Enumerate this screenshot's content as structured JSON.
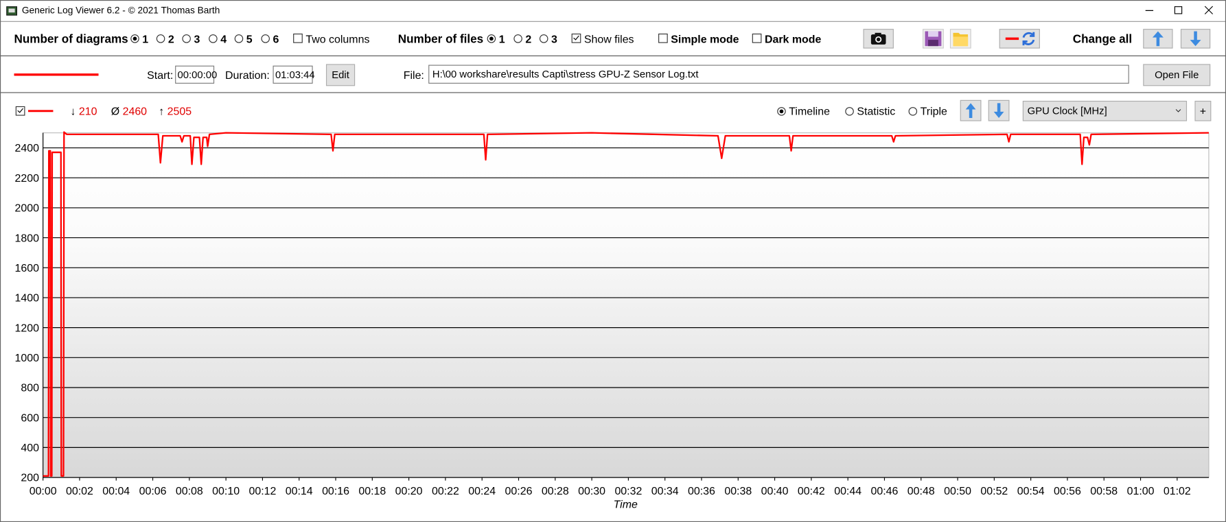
{
  "window": {
    "title": "Generic Log Viewer 6.2 - © 2021 Thomas Barth"
  },
  "toolbar": {
    "diagrams_label": "Number of diagrams",
    "diagram_options": [
      "1",
      "2",
      "3",
      "4",
      "5",
      "6"
    ],
    "two_columns": "Two columns",
    "files_label": "Number of files",
    "file_options": [
      "1",
      "2",
      "3"
    ],
    "show_files": "Show files",
    "simple_mode": "Simple mode",
    "dark_mode": "Dark mode",
    "change_all": "Change all"
  },
  "file_bar": {
    "start_label": "Start:",
    "start": "00:00:00",
    "duration_label": "Duration:",
    "duration": "01:03:44",
    "edit": "Edit",
    "file_label": "File:",
    "file": "H:\\00 workshare\\results Capti\\stress GPU-Z Sensor Log.txt",
    "open_file": "Open File"
  },
  "chart_panel": {
    "stats": [
      {
        "symbol": "↓",
        "value": 210
      },
      {
        "symbol": "Ø",
        "value": 2460
      },
      {
        "symbol": "↑",
        "value": 2505
      }
    ],
    "modes": [
      "Timeline",
      "Statistic",
      "Triple"
    ],
    "selector": "GPU Clock [MHz]",
    "add": "+"
  },
  "chart_data": {
    "type": "line",
    "x_label": "Time",
    "grid": true,
    "x": [
      0,
      0.3,
      0.32,
      0.4,
      0.42,
      0.48,
      0.5,
      0.98,
      1.0,
      1.12,
      1.15,
      1.3,
      6.3,
      6.42,
      6.55,
      7.5,
      7.6,
      7.7,
      8.05,
      8.14,
      8.25,
      8.55,
      8.65,
      8.75,
      8.95,
      9.0,
      9.1,
      10,
      15.75,
      15.85,
      15.95,
      24.1,
      24.2,
      24.3,
      30,
      36.9,
      37.1,
      37.3,
      40.8,
      40.9,
      41.0,
      46.4,
      46.5,
      46.6,
      52.7,
      52.8,
      52.9,
      56.7,
      56.8,
      56.9,
      57.1,
      57.2,
      57.3,
      63.73
    ],
    "series": [
      {
        "color": "#ff0000",
        "values": [
          210,
          210,
          2380,
          2380,
          210,
          210,
          2370,
          2370,
          210,
          210,
          2505,
          2490,
          2490,
          2300,
          2480,
          2480,
          2440,
          2480,
          2480,
          2290,
          2470,
          2470,
          2290,
          2470,
          2470,
          2410,
          2490,
          2500,
          2490,
          2380,
          2490,
          2490,
          2320,
          2490,
          2500,
          2480,
          2330,
          2480,
          2480,
          2380,
          2480,
          2480,
          2440,
          2480,
          2490,
          2440,
          2490,
          2490,
          2290,
          2470,
          2470,
          2420,
          2490,
          2500
        ]
      }
    ],
    "xlim": [
      0,
      63.73
    ],
    "xticks": [
      {
        "value": 0,
        "label": "00:00"
      },
      {
        "value": 2,
        "label": "00:02"
      },
      {
        "value": 4,
        "label": "00:04"
      },
      {
        "value": 6,
        "label": "00:06"
      },
      {
        "value": 8,
        "label": "00:08"
      },
      {
        "value": 10,
        "label": "00:10"
      },
      {
        "value": 12,
        "label": "00:12"
      },
      {
        "value": 14,
        "label": "00:14"
      },
      {
        "value": 16,
        "label": "00:16"
      },
      {
        "value": 18,
        "label": "00:18"
      },
      {
        "value": 20,
        "label": "00:20"
      },
      {
        "value": 22,
        "label": "00:22"
      },
      {
        "value": 24,
        "label": "00:24"
      },
      {
        "value": 26,
        "label": "00:26"
      },
      {
        "value": 28,
        "label": "00:28"
      },
      {
        "value": 30,
        "label": "00:30"
      },
      {
        "value": 32,
        "label": "00:32"
      },
      {
        "value": 34,
        "label": "00:34"
      },
      {
        "value": 36,
        "label": "00:36"
      },
      {
        "value": 38,
        "label": "00:38"
      },
      {
        "value": 40,
        "label": "00:40"
      },
      {
        "value": 42,
        "label": "00:42"
      },
      {
        "value": 44,
        "label": "00:44"
      },
      {
        "value": 46,
        "label": "00:46"
      },
      {
        "value": 48,
        "label": "00:48"
      },
      {
        "value": 50,
        "label": "00:50"
      },
      {
        "value": 52,
        "label": "00:52"
      },
      {
        "value": 54,
        "label": "00:54"
      },
      {
        "value": 56,
        "label": "00:56"
      },
      {
        "value": 58,
        "label": "00:58"
      },
      {
        "value": 60,
        "label": "01:00"
      },
      {
        "value": 62,
        "label": "01:02"
      }
    ],
    "ylim": [
      200,
      2500
    ],
    "yticks": [
      200,
      400,
      600,
      800,
      1000,
      1200,
      1400,
      1600,
      1800,
      2000,
      2200,
      2400
    ]
  }
}
